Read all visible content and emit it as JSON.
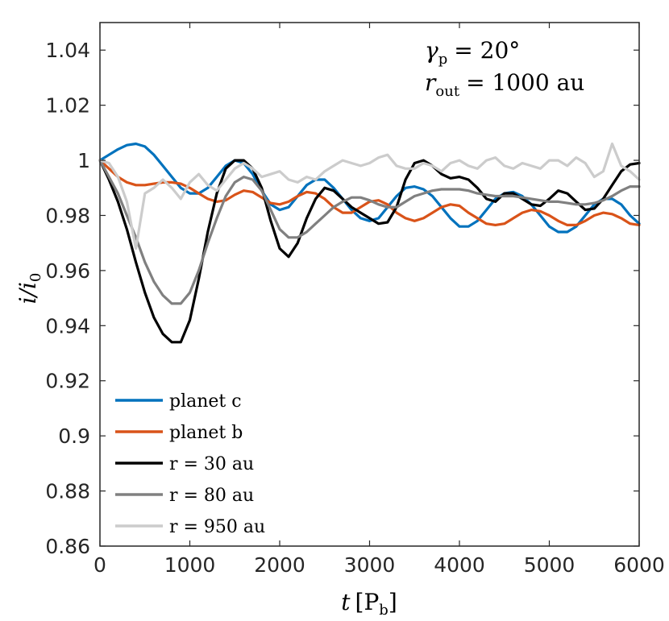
{
  "chart_data": {
    "type": "line",
    "xlabel": "t [P_b]",
    "xlabel_var": "t",
    "xlabel_unit": "P",
    "xlabel_unit_sub": "b",
    "ylabel": "i/i_0",
    "ylabel_var": "i/i",
    "ylabel_sub": "0",
    "xlim": [
      0,
      6000
    ],
    "ylim": [
      0.86,
      1.05
    ],
    "xticks": [
      0,
      1000,
      2000,
      3000,
      4000,
      5000,
      6000
    ],
    "xtick_labels": [
      "0",
      "1000",
      "2000",
      "3000",
      "4000",
      "5000",
      "6000"
    ],
    "yticks": [
      0.86,
      0.88,
      0.9,
      0.92,
      0.94,
      0.96,
      0.98,
      1.0,
      1.02,
      1.04
    ],
    "ytick_labels": [
      "0.86",
      "0.88",
      "0.9",
      "0.92",
      "0.94",
      "0.96",
      "0.98",
      "1",
      "1.02",
      "1.04"
    ],
    "annotations": [
      {
        "var": "γ",
        "sub": "p",
        "rhs": "= 20°"
      },
      {
        "var": "r",
        "sub": "out",
        "rhs": "= 1000 au"
      }
    ],
    "legend_position": "bottom-left",
    "series": [
      {
        "name": "planet c",
        "color": "#0072BD",
        "x": [
          0,
          100,
          200,
          300,
          400,
          500,
          600,
          700,
          800,
          900,
          1000,
          1100,
          1200,
          1300,
          1400,
          1500,
          1600,
          1700,
          1800,
          1900,
          2000,
          2100,
          2200,
          2300,
          2400,
          2500,
          2600,
          2700,
          2800,
          2900,
          3000,
          3100,
          3200,
          3300,
          3400,
          3500,
          3600,
          3700,
          3800,
          3900,
          4000,
          4100,
          4200,
          4300,
          4400,
          4500,
          4600,
          4700,
          4800,
          4900,
          5000,
          5100,
          5200,
          5300,
          5400,
          5500,
          5600,
          5700,
          5800,
          5900,
          6000
        ],
        "values": [
          1.0,
          1.002,
          1.004,
          1.0055,
          1.006,
          1.005,
          1.002,
          0.998,
          0.994,
          0.99,
          0.988,
          0.988,
          0.99,
          0.994,
          0.998,
          1.0,
          0.999,
          0.995,
          0.989,
          0.984,
          0.982,
          0.983,
          0.987,
          0.991,
          0.993,
          0.993,
          0.99,
          0.986,
          0.982,
          0.979,
          0.978,
          0.979,
          0.983,
          0.987,
          0.99,
          0.9905,
          0.9895,
          0.987,
          0.983,
          0.979,
          0.976,
          0.976,
          0.978,
          0.982,
          0.986,
          0.988,
          0.9885,
          0.987,
          0.984,
          0.98,
          0.976,
          0.974,
          0.974,
          0.976,
          0.98,
          0.984,
          0.986,
          0.986,
          0.984,
          0.98,
          0.977
        ]
      },
      {
        "name": "planet b",
        "color": "#D95319",
        "x": [
          0,
          100,
          200,
          300,
          400,
          500,
          600,
          700,
          800,
          900,
          1000,
          1100,
          1200,
          1300,
          1400,
          1500,
          1600,
          1700,
          1800,
          1900,
          2000,
          2100,
          2200,
          2300,
          2400,
          2500,
          2600,
          2700,
          2800,
          2900,
          3000,
          3100,
          3200,
          3300,
          3400,
          3500,
          3600,
          3700,
          3800,
          3900,
          4000,
          4100,
          4200,
          4300,
          4400,
          4500,
          4600,
          4700,
          4800,
          4900,
          5000,
          5100,
          5200,
          5300,
          5400,
          5500,
          5600,
          5700,
          5800,
          5900,
          6000
        ],
        "values": [
          1.0,
          0.997,
          0.994,
          0.992,
          0.991,
          0.991,
          0.9915,
          0.992,
          0.992,
          0.9915,
          0.99,
          0.988,
          0.986,
          0.985,
          0.9855,
          0.9875,
          0.989,
          0.9885,
          0.9865,
          0.9845,
          0.984,
          0.985,
          0.987,
          0.9885,
          0.988,
          0.986,
          0.983,
          0.981,
          0.981,
          0.983,
          0.985,
          0.9855,
          0.984,
          0.981,
          0.979,
          0.978,
          0.979,
          0.981,
          0.983,
          0.984,
          0.9835,
          0.981,
          0.979,
          0.977,
          0.9765,
          0.977,
          0.979,
          0.981,
          0.982,
          0.9815,
          0.98,
          0.978,
          0.9765,
          0.9765,
          0.978,
          0.98,
          0.981,
          0.9805,
          0.979,
          0.977,
          0.9765
        ]
      },
      {
        "name": "r = 30 au",
        "color": "#000000",
        "x": [
          0,
          100,
          200,
          300,
          400,
          500,
          600,
          700,
          800,
          900,
          1000,
          1100,
          1200,
          1300,
          1400,
          1500,
          1600,
          1700,
          1800,
          1900,
          2000,
          2100,
          2200,
          2300,
          2400,
          2500,
          2600,
          2700,
          2800,
          2900,
          3000,
          3100,
          3200,
          3300,
          3400,
          3500,
          3600,
          3700,
          3800,
          3900,
          4000,
          4100,
          4200,
          4300,
          4400,
          4500,
          4600,
          4700,
          4800,
          4900,
          5000,
          5100,
          5200,
          5300,
          5400,
          5500,
          5600,
          5700,
          5800,
          5900,
          6000
        ],
        "values": [
          1.0,
          0.993,
          0.985,
          0.975,
          0.963,
          0.952,
          0.943,
          0.937,
          0.934,
          0.934,
          0.942,
          0.957,
          0.974,
          0.988,
          0.997,
          1.0,
          1.0,
          0.997,
          0.99,
          0.978,
          0.968,
          0.965,
          0.97,
          0.979,
          0.986,
          0.99,
          0.989,
          0.986,
          0.983,
          0.981,
          0.979,
          0.977,
          0.9775,
          0.983,
          0.993,
          0.999,
          1.0,
          0.998,
          0.995,
          0.9935,
          0.994,
          0.993,
          0.99,
          0.986,
          0.985,
          0.988,
          0.988,
          0.986,
          0.984,
          0.9835,
          0.986,
          0.989,
          0.988,
          0.985,
          0.982,
          0.9825,
          0.986,
          0.991,
          0.996,
          0.9985,
          0.999
        ]
      },
      {
        "name": "r = 80 au",
        "color": "#808080",
        "x": [
          0,
          100,
          200,
          300,
          400,
          500,
          600,
          700,
          800,
          900,
          1000,
          1100,
          1200,
          1300,
          1400,
          1500,
          1600,
          1700,
          1800,
          1900,
          2000,
          2100,
          2200,
          2300,
          2400,
          2500,
          2600,
          2700,
          2800,
          2900,
          3000,
          3100,
          3200,
          3300,
          3400,
          3500,
          3600,
          3700,
          3800,
          3900,
          4000,
          4100,
          4200,
          4300,
          4400,
          4500,
          4600,
          4700,
          4800,
          4900,
          5000,
          5100,
          5200,
          5300,
          5400,
          5500,
          5600,
          5700,
          5800,
          5900,
          6000
        ],
        "values": [
          1.0,
          0.994,
          0.988,
          0.98,
          0.972,
          0.963,
          0.956,
          0.951,
          0.948,
          0.948,
          0.952,
          0.96,
          0.97,
          0.979,
          0.987,
          0.992,
          0.994,
          0.993,
          0.989,
          0.982,
          0.975,
          0.972,
          0.972,
          0.974,
          0.977,
          0.98,
          0.983,
          0.985,
          0.9865,
          0.9865,
          0.9855,
          0.984,
          0.983,
          0.983,
          0.985,
          0.987,
          0.988,
          0.989,
          0.9895,
          0.9895,
          0.9895,
          0.989,
          0.988,
          0.9875,
          0.987,
          0.987,
          0.987,
          0.9865,
          0.986,
          0.9855,
          0.985,
          0.985,
          0.9845,
          0.984,
          0.984,
          0.9845,
          0.9855,
          0.987,
          0.989,
          0.9905,
          0.9905
        ]
      },
      {
        "name": "r = 950 au",
        "color": "#CCCCCC",
        "x": [
          0,
          100,
          200,
          300,
          400,
          500,
          600,
          700,
          800,
          900,
          1000,
          1100,
          1200,
          1300,
          1400,
          1500,
          1600,
          1700,
          1800,
          1900,
          2000,
          2100,
          2200,
          2300,
          2400,
          2500,
          2600,
          2700,
          2800,
          2900,
          3000,
          3100,
          3200,
          3300,
          3400,
          3500,
          3600,
          3700,
          3800,
          3900,
          4000,
          4100,
          4200,
          4300,
          4400,
          4500,
          4600,
          4700,
          4800,
          4900,
          5000,
          5100,
          5200,
          5300,
          5400,
          5500,
          5600,
          5700,
          5800,
          5900,
          6000
        ],
        "values": [
          1.0,
          0.999,
          0.994,
          0.985,
          0.968,
          0.988,
          0.99,
          0.993,
          0.99,
          0.986,
          0.992,
          0.995,
          0.991,
          0.989,
          0.993,
          0.997,
          0.999,
          0.997,
          0.994,
          0.995,
          0.996,
          0.993,
          0.992,
          0.994,
          0.993,
          0.996,
          0.998,
          1.0,
          0.999,
          0.998,
          0.999,
          1.001,
          1.002,
          0.998,
          0.997,
          0.997,
          0.999,
          0.998,
          0.996,
          0.999,
          1.0,
          0.998,
          0.997,
          1.0,
          1.001,
          0.998,
          0.997,
          0.999,
          0.998,
          0.997,
          1.0,
          1.0,
          0.998,
          1.001,
          0.999,
          0.994,
          0.996,
          1.006,
          0.998,
          0.996,
          0.993
        ]
      }
    ]
  }
}
